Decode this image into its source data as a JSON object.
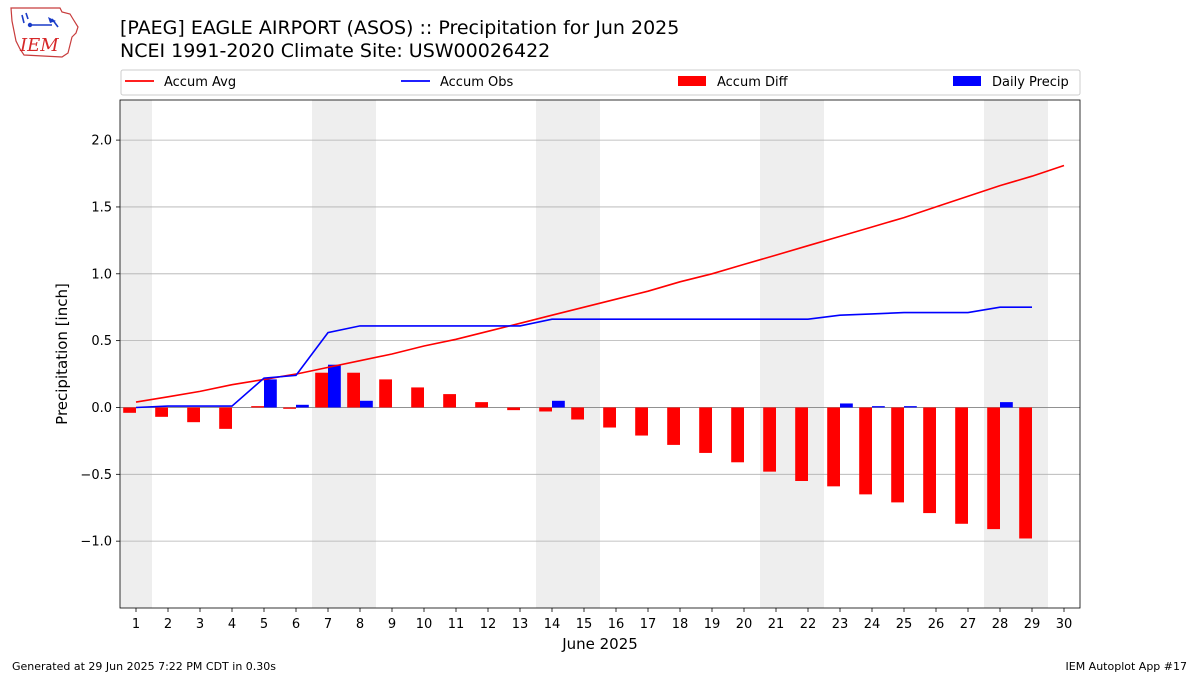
{
  "title": {
    "line1": "[PAEG] EAGLE AIRPORT (ASOS) :: Precipitation for Jun 2025",
    "line2": "NCEI 1991-2020 Climate Site: USW00026422"
  },
  "footer": {
    "left": "Generated at 29 Jun 2025 7:22 PM CDT in 0.30s",
    "right": "IEM Autoplot App #17"
  },
  "logo": {
    "text": "IEM",
    "color": "#d62728"
  },
  "chart_data": {
    "type": "bar",
    "xlabel": "June 2025",
    "ylabel": "Precipitation [inch]",
    "ylim": [
      -1.5,
      2.3
    ],
    "yticks": [
      -1.0,
      -0.5,
      0.0,
      0.5,
      1.0,
      1.5,
      2.0
    ],
    "ytick_labels": [
      "−1.0",
      "−0.5",
      "0.0",
      "0.5",
      "1.0",
      "1.5",
      "2.0"
    ],
    "days": [
      1,
      2,
      3,
      4,
      5,
      6,
      7,
      8,
      9,
      10,
      11,
      12,
      13,
      14,
      15,
      16,
      17,
      18,
      19,
      20,
      21,
      22,
      23,
      24,
      25,
      26,
      27,
      28,
      29,
      30
    ],
    "xtick_labels": [
      "1",
      "2",
      "3",
      "4",
      "5",
      "6",
      "7",
      "8",
      "9",
      "10",
      "11",
      "12",
      "13",
      "14",
      "15",
      "16",
      "17",
      "18",
      "19",
      "20",
      "21",
      "22",
      "23",
      "24",
      "25",
      "26",
      "27",
      "28",
      "29",
      "30"
    ],
    "weekend_days": [
      1,
      7,
      8,
      14,
      15,
      21,
      22,
      28,
      29
    ],
    "grid": "y",
    "legend_position": "top",
    "series": [
      {
        "name": "Accum Avg",
        "kind": "line",
        "color": "#ff0000",
        "values": [
          0.04,
          0.08,
          0.12,
          0.17,
          0.21,
          0.25,
          0.3,
          0.35,
          0.4,
          0.46,
          0.51,
          0.57,
          0.63,
          0.69,
          0.75,
          0.81,
          0.87,
          0.94,
          1.0,
          1.07,
          1.14,
          1.21,
          1.28,
          1.35,
          1.42,
          1.5,
          1.58,
          1.66,
          1.73,
          1.81
        ]
      },
      {
        "name": "Accum Obs",
        "kind": "line",
        "color": "#0000ff",
        "values": [
          0.0,
          0.01,
          0.01,
          0.01,
          0.22,
          0.24,
          0.56,
          0.61,
          0.61,
          0.61,
          0.61,
          0.61,
          0.61,
          0.66,
          0.66,
          0.66,
          0.66,
          0.66,
          0.66,
          0.66,
          0.66,
          0.66,
          0.69,
          0.7,
          0.71,
          0.71,
          0.71,
          0.75,
          0.75
        ]
      },
      {
        "name": "Accum Diff",
        "kind": "bar",
        "color": "#ff0000",
        "values": [
          -0.04,
          -0.07,
          -0.11,
          -0.16,
          0.01,
          -0.01,
          0.26,
          0.26,
          0.21,
          0.15,
          0.1,
          0.04,
          -0.02,
          -0.03,
          -0.09,
          -0.15,
          -0.21,
          -0.28,
          -0.34,
          -0.41,
          -0.48,
          -0.55,
          -0.59,
          -0.65,
          -0.71,
          -0.79,
          -0.87,
          -0.91,
          -0.98
        ]
      },
      {
        "name": "Daily Precip",
        "kind": "bar",
        "color": "#0000ff",
        "values": [
          0.0,
          0.0,
          0.0,
          0.0,
          0.21,
          0.02,
          0.32,
          0.05,
          0.0,
          0.0,
          0.0,
          0.0,
          0.0,
          0.05,
          0.0,
          0.0,
          0.0,
          0.0,
          0.0,
          0.0,
          0.0,
          0.0,
          0.03,
          0.01,
          0.01,
          0.0,
          0.0,
          0.04,
          0.0
        ]
      }
    ]
  }
}
